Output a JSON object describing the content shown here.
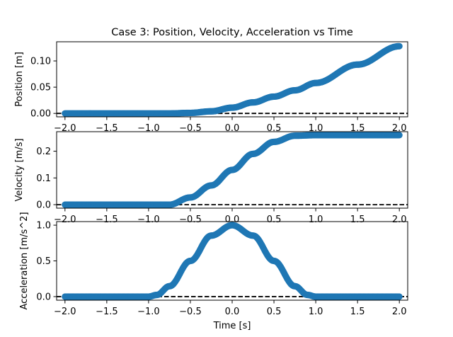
{
  "figure": {
    "title": "Case 3: Position, Velocity, Acceleration vs Time"
  },
  "chart_data": [
    {
      "type": "scatter",
      "title": "Case 3: Position, Velocity, Acceleration vs Time",
      "xlabel": "",
      "ylabel": "Position [m]",
      "xlim": [
        -2.1,
        2.1
      ],
      "ylim": [
        -0.0065,
        0.1365
      ],
      "x_ticks": [
        -2.0,
        -1.5,
        -1.0,
        -0.5,
        0.0,
        0.5,
        1.0,
        1.5,
        2.0
      ],
      "x_tick_labels": [
        "−2.0",
        "−1.5",
        "−1.0",
        "−0.5",
        "0.0",
        "0.5",
        "1.0",
        "1.5",
        "2.0"
      ],
      "y_ticks": [
        0.0,
        0.05,
        0.1
      ],
      "y_tick_labels": [
        "0.00",
        "0.05",
        "0.10"
      ],
      "reference_line": {
        "y": 0,
        "style": "dashed",
        "color": "#000000"
      },
      "marker_color": "#1f77b4",
      "x": [
        -2.0,
        -1.5,
        -1.0,
        -0.75,
        -0.5,
        -0.25,
        0.0,
        0.25,
        0.5,
        0.75,
        1.0,
        1.5,
        2.0
      ],
      "y": [
        0.0,
        0.0,
        0.0,
        0.0,
        0.001,
        0.004,
        0.011,
        0.021,
        0.032,
        0.044,
        0.058,
        0.093,
        0.128
      ]
    },
    {
      "type": "scatter",
      "title": "",
      "xlabel": "",
      "ylabel": "Velocity [m/s]",
      "xlim": [
        -2.1,
        2.1
      ],
      "ylim": [
        -0.013,
        0.273
      ],
      "x_ticks": [
        -2.0,
        -1.5,
        -1.0,
        -0.5,
        0.0,
        0.5,
        1.0,
        1.5,
        2.0
      ],
      "x_tick_labels": [
        "−2.0",
        "−1.5",
        "−1.0",
        "−0.5",
        "0.0",
        "0.5",
        "1.0",
        "1.5",
        "2.0"
      ],
      "y_ticks": [
        0.0,
        0.1,
        0.2
      ],
      "y_tick_labels": [
        "0.0",
        "0.1",
        "0.2"
      ],
      "reference_line": {
        "y": 0,
        "style": "dashed",
        "color": "#000000"
      },
      "marker_color": "#1f77b4",
      "x": [
        -2.0,
        -1.5,
        -1.0,
        -0.75,
        -0.5,
        -0.25,
        0.0,
        0.25,
        0.5,
        0.75,
        1.0,
        1.5,
        2.0
      ],
      "y": [
        0.0,
        0.0,
        0.0,
        0.0,
        0.027,
        0.072,
        0.13,
        0.19,
        0.235,
        0.258,
        0.26,
        0.26,
        0.26
      ]
    },
    {
      "type": "scatter",
      "title": "",
      "xlabel": "Time [s]",
      "ylabel": "Acceleration [m/s^2]",
      "xlim": [
        -2.1,
        2.1
      ],
      "ylim": [
        -0.05,
        1.05
      ],
      "x_ticks": [
        -2.0,
        -1.5,
        -1.0,
        -0.5,
        0.0,
        0.5,
        1.0,
        1.5,
        2.0
      ],
      "x_tick_labels": [
        "−2.0",
        "−1.5",
        "−1.0",
        "−0.5",
        "0.0",
        "0.5",
        "1.0",
        "1.5",
        "2.0"
      ],
      "y_ticks": [
        0.0,
        0.5,
        1.0
      ],
      "y_tick_labels": [
        "0.0",
        "0.5",
        "1.0"
      ],
      "reference_line": {
        "y": 0,
        "style": "dashed",
        "color": "#000000"
      },
      "marker_color": "#1f77b4",
      "x": [
        -2.0,
        -1.5,
        -1.0,
        -0.9,
        -0.75,
        -0.5,
        -0.25,
        0.0,
        0.25,
        0.5,
        0.75,
        0.9,
        1.0,
        1.5,
        2.0
      ],
      "y": [
        0.0,
        0.0,
        0.0,
        0.024,
        0.146,
        0.5,
        0.854,
        1.0,
        0.854,
        0.5,
        0.146,
        0.024,
        0.0,
        0.0,
        0.0
      ]
    }
  ]
}
